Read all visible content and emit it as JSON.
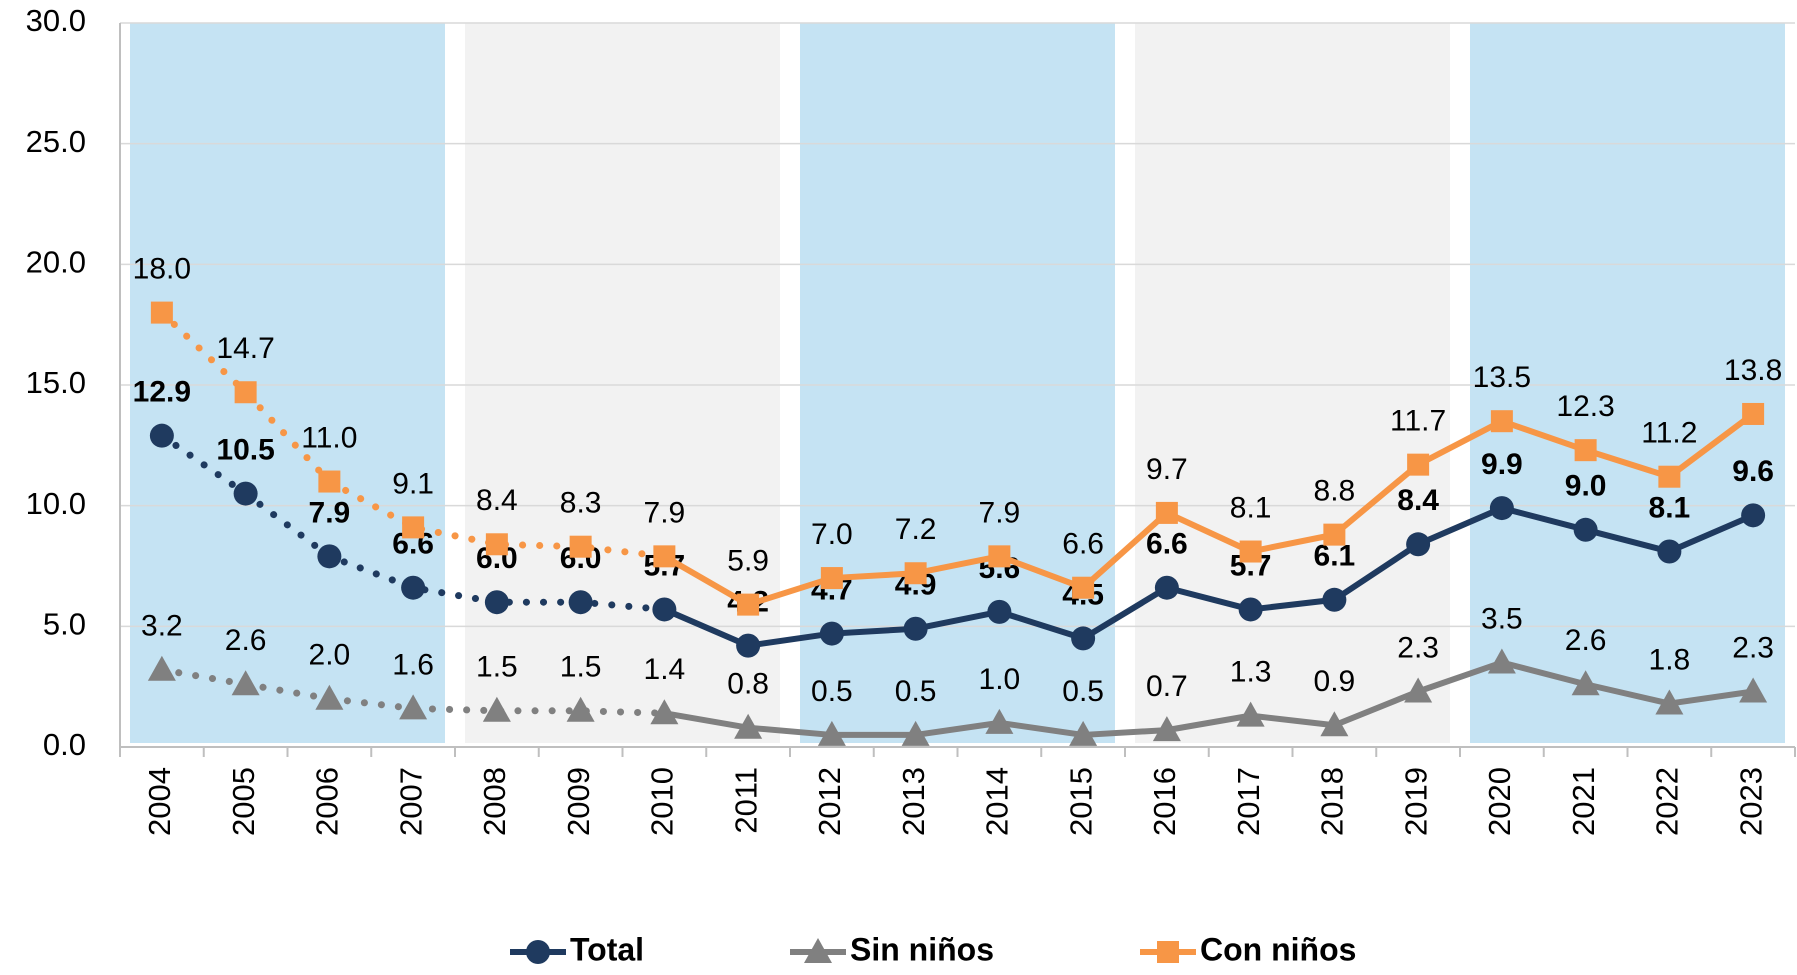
{
  "chart_data": {
    "type": "line",
    "categories": [
      "2004",
      "2005",
      "2006",
      "2007",
      "2008",
      "2009",
      "2010",
      "2011",
      "2012",
      "2013",
      "2014",
      "2015",
      "2016",
      "2017",
      "2018",
      "2019",
      "2020",
      "2021",
      "2022",
      "2023"
    ],
    "series": [
      {
        "name": "Total",
        "color": "#1f3a5f",
        "marker": "circle",
        "label_weight": "bold",
        "values": [
          12.9,
          10.5,
          7.9,
          6.6,
          6.0,
          6.0,
          5.7,
          4.2,
          4.7,
          4.9,
          5.6,
          4.5,
          6.6,
          5.7,
          6.1,
          8.4,
          9.9,
          9.0,
          8.1,
          9.6
        ],
        "value_labels": [
          "12.9",
          "10.5",
          "7.9",
          "6.6",
          "6.0",
          "6.0",
          "5.7",
          "4.2",
          "4.7",
          "4.9",
          "5.6",
          "4.5",
          "6.6",
          "5.7",
          "6.1",
          "8.4",
          "9.9",
          "9.0",
          "8.1",
          "9.6"
        ]
      },
      {
        "name": "Sin niños",
        "color": "#808080",
        "marker": "triangle",
        "label_weight": "normal",
        "values": [
          3.2,
          2.6,
          2.0,
          1.6,
          1.5,
          1.5,
          1.4,
          0.8,
          0.5,
          0.5,
          1.0,
          0.5,
          0.7,
          1.3,
          0.9,
          2.3,
          3.5,
          2.6,
          1.8,
          2.3
        ],
        "value_labels": [
          "3.2",
          "2.6",
          "2.0",
          "1.6",
          "1.5",
          "1.5",
          "1.4",
          "0.8",
          "0.5",
          "0.5",
          "1.0",
          "0.5",
          "0.7",
          "1.3",
          "0.9",
          "2.3",
          "3.5",
          "2.6",
          "1.8",
          "2.3"
        ]
      },
      {
        "name": "Con niños",
        "color": "#f79646",
        "marker": "square",
        "label_weight": "normal",
        "values": [
          18.0,
          14.7,
          11.0,
          9.1,
          8.4,
          8.3,
          7.9,
          5.9,
          7.0,
          7.2,
          7.9,
          6.6,
          9.7,
          8.1,
          8.8,
          11.7,
          13.5,
          12.3,
          11.2,
          13.8
        ],
        "value_labels": [
          "18.0",
          "14.7",
          "11.0",
          "9.1",
          "8.4",
          "8.3",
          "7.9",
          "5.9",
          "7.0",
          "7.2",
          "7.9",
          "6.6",
          "9.7",
          "8.1",
          "8.8",
          "11.7",
          "13.5",
          "12.3",
          "11.2",
          "13.8"
        ]
      }
    ],
    "ylim": [
      0,
      30
    ],
    "yticks": [
      {
        "value": 0,
        "label": "0.0"
      },
      {
        "value": 5,
        "label": "5.0"
      },
      {
        "value": 10,
        "label": "10.0"
      },
      {
        "value": 15,
        "label": "15.0"
      },
      {
        "value": 20,
        "label": "20.0"
      },
      {
        "value": 25,
        "label": "25.0"
      },
      {
        "value": 30,
        "label": "30.0"
      }
    ],
    "grid": true,
    "band_colors": [
      "#c5e3f3",
      "#f2f2f2"
    ],
    "legend": "bottom"
  }
}
